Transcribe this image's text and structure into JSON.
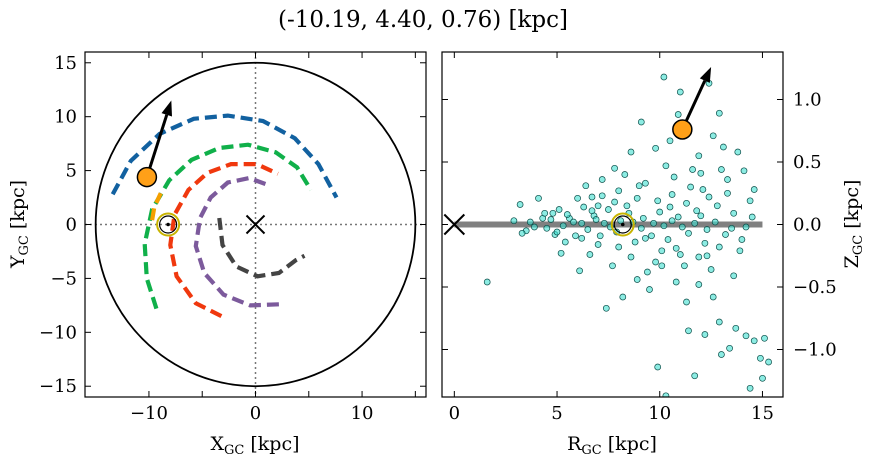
{
  "title": "(-10.19, 4.40, 0.76) [kpc]",
  "colors": {
    "arm_blue": "#1261a0",
    "arm_green": "#10b04a",
    "arm_red": "#f0380e",
    "arm_purple": "#7c5a9c",
    "arm_gray": "#444444",
    "arm_orange": "#f5a000",
    "marker": "#ffa018",
    "sun": "#c8b400",
    "scatter_fill": "#40e0d0",
    "disk_line": "#808080"
  },
  "chart_data": [
    {
      "type": "line",
      "name": "galactic-plane-xy",
      "xlabel": "X",
      "xlabel_sub": "GC",
      "xlabel_unit": " [kpc]",
      "ylabel": "Y",
      "ylabel_sub": "GC",
      "ylabel_unit": " [kpc]",
      "xlim": [
        -16,
        16
      ],
      "ylim": [
        -16,
        16
      ],
      "xticks": [
        -10,
        -5,
        0,
        5,
        10,
        15
      ],
      "xticklabels": [
        "−10",
        "",
        "0",
        "",
        "10",
        ""
      ],
      "yticks": [
        -15,
        -10,
        -5,
        0,
        5,
        10,
        15
      ],
      "yticklabels": [
        "−15",
        "−10",
        "−5",
        "0",
        "5",
        "10",
        "15"
      ],
      "boundary_circle_radius": 15,
      "galactic_center": [
        0,
        0
      ],
      "sun_position": [
        -8.2,
        0
      ],
      "object_position": [
        -10.19,
        4.4
      ],
      "object_arrow_tip": [
        -7.9,
        11.5
      ],
      "spiral_arms": [
        {
          "color_key": "arm_blue",
          "points": [
            [
              -13.4,
              2.8
            ],
            [
              -11.7,
              5.9
            ],
            [
              -9.0,
              8.4
            ],
            [
              -5.8,
              9.8
            ],
            [
              -2.6,
              10.1
            ],
            [
              0.7,
              9.6
            ],
            [
              3.7,
              8.0
            ],
            [
              5.9,
              5.6
            ],
            [
              7.6,
              2.5
            ]
          ]
        },
        {
          "color_key": "arm_green",
          "points": [
            [
              -9.3,
              -7.8
            ],
            [
              -10.2,
              -5.0
            ],
            [
              -10.4,
              -1.8
            ],
            [
              -9.7,
              1.4
            ],
            [
              -8.1,
              4.1
            ],
            [
              -6.0,
              6.0
            ],
            [
              -3.4,
              7.1
            ],
            [
              -0.7,
              7.4
            ],
            [
              1.9,
              6.7
            ],
            [
              3.9,
              5.3
            ],
            [
              5.2,
              3.2
            ]
          ]
        },
        {
          "color_key": "arm_red",
          "points": [
            [
              -3.2,
              -8.5
            ],
            [
              -5.6,
              -7.3
            ],
            [
              -7.4,
              -4.8
            ],
            [
              -8.0,
              -1.9
            ],
            [
              -7.6,
              0.9
            ],
            [
              -6.3,
              3.2
            ],
            [
              -4.5,
              4.8
            ],
            [
              -2.3,
              5.6
            ],
            [
              0.1,
              5.6
            ],
            [
              2.1,
              4.7
            ]
          ]
        },
        {
          "color_key": "arm_purple",
          "points": [
            [
              2.2,
              -7.4
            ],
            [
              -0.5,
              -7.5
            ],
            [
              -3.0,
              -6.5
            ],
            [
              -4.8,
              -4.5
            ],
            [
              -5.6,
              -2.0
            ],
            [
              -5.2,
              0.6
            ],
            [
              -4.2,
              2.5
            ],
            [
              -2.6,
              3.9
            ],
            [
              -0.6,
              4.3
            ],
            [
              1.1,
              3.7
            ]
          ]
        },
        {
          "color_key": "arm_gray",
          "points": [
            [
              -3.4,
              0.6
            ],
            [
              -3.1,
              -1.9
            ],
            [
              -1.8,
              -3.9
            ],
            [
              0.2,
              -4.8
            ],
            [
              2.2,
              -4.5
            ],
            [
              3.8,
              -3.3
            ],
            [
              4.6,
              -2.9
            ]
          ]
        },
        {
          "color_key": "arm_orange",
          "points": [
            [
              -9.7,
              0.4
            ],
            [
              -9.5,
              1.6
            ],
            [
              -8.9,
              2.9
            ]
          ]
        }
      ]
    },
    {
      "type": "scatter",
      "name": "r-z-distribution",
      "xlabel": "R",
      "xlabel_sub": "GC",
      "xlabel_unit": " [kpc]",
      "ylabel": "Z",
      "ylabel_sub": "GC",
      "ylabel_unit": " [kpc]",
      "xlim": [
        -0.6,
        16
      ],
      "ylim": [
        -1.38,
        1.38
      ],
      "xticks": [
        0,
        5,
        10,
        15
      ],
      "xticklabels": [
        "0",
        "5",
        "10",
        "15"
      ],
      "yticks": [
        -1.0,
        -0.5,
        0.0,
        0.5,
        1.0
      ],
      "yticklabels": [
        "−1.0",
        "−0.5",
        "0.0",
        "0.5",
        "1.0"
      ],
      "disk_line": {
        "x": [
          0,
          15
        ],
        "y": 0
      },
      "galactic_center": [
        0,
        0
      ],
      "sun_position": [
        8.2,
        0
      ],
      "object_position": [
        11.1,
        0.76
      ],
      "object_arrow_tip": [
        12.5,
        1.26
      ],
      "points": [
        [
          10.2,
          1.18
        ],
        [
          12.4,
          1.13
        ],
        [
          11.0,
          1.06
        ],
        [
          9.1,
          0.82
        ],
        [
          10.9,
          0.88
        ],
        [
          12.9,
          0.89
        ],
        [
          10.5,
          0.67
        ],
        [
          12.6,
          0.71
        ],
        [
          13.1,
          0.62
        ],
        [
          13.8,
          0.58
        ],
        [
          9.8,
          0.61
        ],
        [
          8.6,
          0.58
        ],
        [
          7.8,
          0.45
        ],
        [
          11.9,
          0.55
        ],
        [
          14.1,
          0.43
        ],
        [
          14.6,
          0.28
        ],
        [
          7.2,
          0.36
        ],
        [
          6.7,
          0.22
        ],
        [
          13.3,
          0.36
        ],
        [
          12.0,
          0.41
        ],
        [
          1.6,
          -0.46
        ],
        [
          3.2,
          0.16
        ],
        [
          4.1,
          0.21
        ],
        [
          5.2,
          -0.23
        ],
        [
          4.8,
          0.09
        ],
        [
          6.1,
          -0.37
        ],
        [
          7.4,
          -0.67
        ],
        [
          8.2,
          -0.58
        ],
        [
          8.9,
          -0.44
        ],
        [
          9.5,
          -0.52
        ],
        [
          10.1,
          -0.33
        ],
        [
          10.8,
          -0.46
        ],
        [
          11.3,
          -0.62
        ],
        [
          11.9,
          -0.48
        ],
        [
          12.6,
          -0.58
        ],
        [
          12.2,
          -0.88
        ],
        [
          12.9,
          -0.78
        ],
        [
          13.4,
          -0.99
        ],
        [
          13.7,
          -0.83
        ],
        [
          14.2,
          -0.89
        ],
        [
          14.6,
          -0.93
        ],
        [
          15.1,
          -0.91
        ],
        [
          14.9,
          -1.07
        ],
        [
          15.3,
          -1.1
        ],
        [
          15.0,
          -1.23
        ],
        [
          14.4,
          -1.31
        ],
        [
          9.9,
          -1.14
        ],
        [
          11.7,
          -1.21
        ],
        [
          10.3,
          -1.37
        ],
        [
          13.0,
          -1.04
        ],
        [
          11.4,
          -0.85
        ],
        [
          12.3,
          -0.25
        ],
        [
          13.6,
          -0.41
        ],
        [
          14.0,
          -0.12
        ],
        [
          9.3,
          0.33
        ],
        [
          10.6,
          0.24
        ],
        [
          11.5,
          0.3
        ],
        [
          12.8,
          0.15
        ],
        [
          7.0,
          -0.16
        ],
        [
          6.3,
          0.14
        ],
        [
          5.6,
          0.05
        ],
        [
          5.9,
          -0.09
        ],
        [
          6.8,
          0.07
        ],
        [
          7.5,
          0.12
        ],
        [
          7.9,
          -0.06
        ],
        [
          8.4,
          0.15
        ],
        [
          8.8,
          -0.14
        ],
        [
          9.2,
          0.05
        ],
        [
          9.6,
          -0.09
        ],
        [
          10.0,
          0.1
        ],
        [
          10.4,
          -0.12
        ],
        [
          10.9,
          0.06
        ],
        [
          11.4,
          -0.07
        ],
        [
          11.8,
          0.11
        ],
        [
          12.3,
          -0.04
        ],
        [
          12.7,
          0.02
        ],
        [
          13.2,
          -0.08
        ],
        [
          13.6,
          0.09
        ],
        [
          14.2,
          -0.02
        ],
        [
          4.5,
          -0.03
        ],
        [
          3.7,
          0.02
        ],
        [
          5.1,
          0.12
        ],
        [
          6.6,
          -0.24
        ],
        [
          7.2,
          0.23
        ],
        [
          8.0,
          0.27
        ],
        [
          8.6,
          -0.26
        ],
        [
          9.0,
          0.31
        ],
        [
          9.8,
          -0.3
        ],
        [
          10.7,
          0.38
        ],
        [
          11.2,
          -0.33
        ],
        [
          12.1,
          0.28
        ],
        [
          12.5,
          -0.36
        ],
        [
          13.0,
          0.44
        ],
        [
          13.9,
          -0.21
        ],
        [
          14.4,
          0.19
        ],
        [
          6.0,
          0.21
        ],
        [
          5.4,
          -0.14
        ],
        [
          4.9,
          -0.08
        ],
        [
          6.4,
          0.31
        ],
        [
          7.7,
          -0.33
        ],
        [
          8.3,
          0.4
        ],
        [
          9.4,
          -0.38
        ],
        [
          10.3,
          0.47
        ],
        [
          11.0,
          -0.24
        ],
        [
          11.6,
          0.44
        ],
        [
          12.9,
          -0.18
        ],
        [
          13.3,
          0.25
        ],
        [
          7.3,
          0.01
        ],
        [
          7.6,
          -0.02
        ],
        [
          8.1,
          0.03
        ],
        [
          8.7,
          0.02
        ],
        [
          9.1,
          -0.03
        ],
        [
          9.7,
          0.01
        ],
        [
          10.2,
          -0.01
        ],
        [
          10.6,
          0.03
        ],
        [
          11.1,
          -0.02
        ],
        [
          11.7,
          0.01
        ],
        [
          6.9,
          0.04
        ],
        [
          6.5,
          -0.04
        ],
        [
          6.2,
          0.01
        ],
        [
          5.8,
          0.02
        ],
        [
          5.3,
          -0.01
        ],
        [
          4.3,
          0.05
        ],
        [
          3.5,
          -0.05
        ],
        [
          2.9,
          0.03
        ],
        [
          3.9,
          -0.02
        ],
        [
          4.7,
          0.04
        ],
        [
          8.5,
          0.09
        ],
        [
          9.3,
          -0.11
        ],
        [
          10.5,
          0.14
        ],
        [
          11.3,
          0.17
        ],
        [
          12.2,
          -0.15
        ],
        [
          13.5,
          -0.03
        ],
        [
          14.5,
          0.06
        ],
        [
          6.2,
          -0.11
        ],
        [
          7.0,
          0.15
        ],
        [
          7.8,
          0.18
        ],
        [
          8.9,
          0.21
        ],
        [
          9.9,
          0.19
        ],
        [
          10.8,
          -0.19
        ],
        [
          11.9,
          -0.26
        ],
        [
          12.4,
          0.22
        ],
        [
          12.0,
          0.07
        ],
        [
          10.1,
          -0.21
        ],
        [
          8.0,
          -0.18
        ],
        [
          7.1,
          -0.09
        ],
        [
          6.7,
          0.11
        ],
        [
          5.5,
          0.08
        ],
        [
          5.0,
          -0.06
        ],
        [
          4.4,
          0.09
        ],
        [
          3.3,
          -0.07
        ]
      ]
    }
  ]
}
